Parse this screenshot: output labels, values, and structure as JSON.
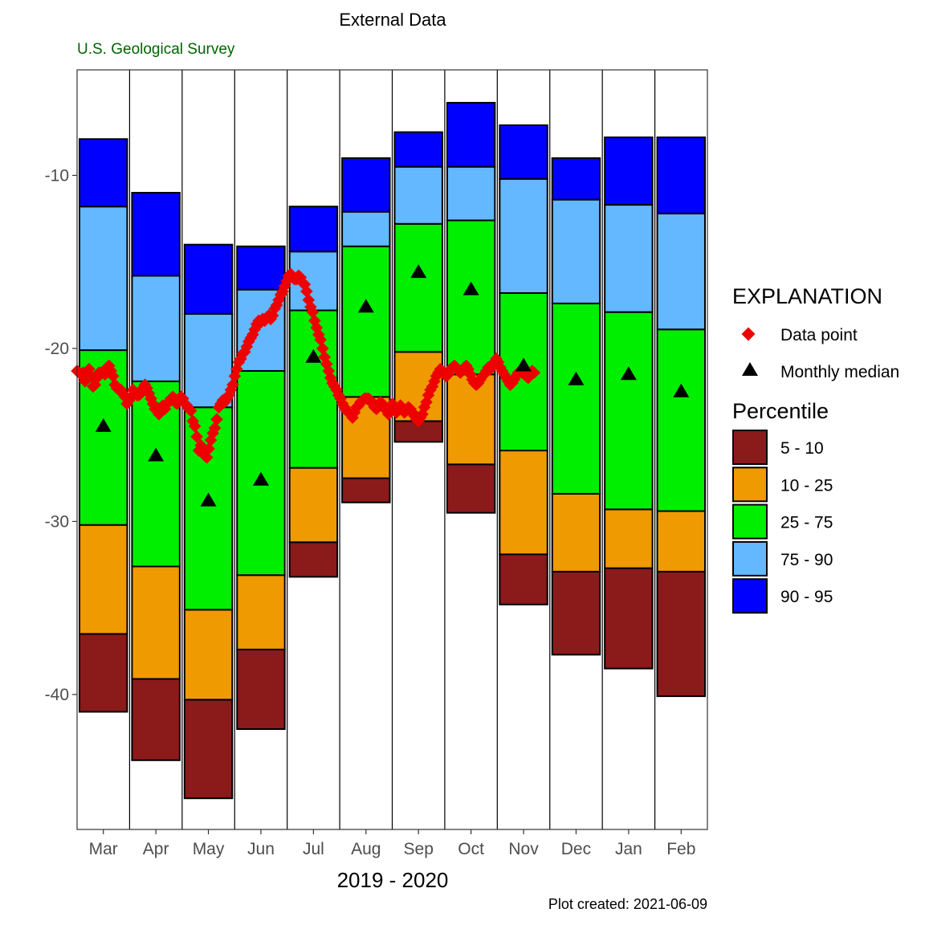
{
  "title": "External Data",
  "subtitle": "U.S. Geological Survey",
  "caption": "Plot created: 2021-06-09",
  "colors": {
    "p5_10": "#8B1A1A",
    "p10_25": "#EE9A00",
    "p25_75": "#00EE00",
    "p75_90": "#63B8FF",
    "p90_95": "#0000FF",
    "data_point": "#EE0000",
    "median": "#000000",
    "subtitle": "#006400"
  },
  "legend": {
    "explanation_title": "EXPLANATION",
    "data_point_label": "Data point",
    "median_label": "Monthly median",
    "percentile_title": "Percentile",
    "percentile_labels": [
      "5 - 10",
      "10 - 25",
      "25 - 75",
      "75 - 90",
      "90 - 95"
    ]
  },
  "chart_data": {
    "type": "bar",
    "xlabel": "2019 - 2020",
    "ylabel": "",
    "ylim": [
      -47.8,
      -3.9
    ],
    "yticks": [
      -10,
      -20,
      -30,
      -40
    ],
    "grid": false,
    "legend_position": "right",
    "categories": [
      "Mar",
      "Apr",
      "May",
      "Jun",
      "Jul",
      "Aug",
      "Sep",
      "Oct",
      "Nov",
      "Dec",
      "Jan",
      "Feb"
    ],
    "percentile_bands": [
      {
        "month": "Mar",
        "p5": -41.0,
        "p10": -36.5,
        "p25": -30.2,
        "p75": -20.1,
        "p90": -11.8,
        "p95": -7.9
      },
      {
        "month": "Apr",
        "p5": -43.8,
        "p10": -39.1,
        "p25": -32.6,
        "p75": -21.9,
        "p90": -15.8,
        "p95": -11.0
      },
      {
        "month": "May",
        "p5": -46.0,
        "p10": -40.3,
        "p25": -35.1,
        "p75": -23.4,
        "p90": -18.0,
        "p95": -14.0
      },
      {
        "month": "Jun",
        "p5": -42.0,
        "p10": -37.4,
        "p25": -33.1,
        "p75": -21.3,
        "p90": -16.6,
        "p95": -14.1
      },
      {
        "month": "Jul",
        "p5": -33.2,
        "p10": -31.2,
        "p25": -26.9,
        "p75": -17.8,
        "p90": -14.4,
        "p95": -11.8
      },
      {
        "month": "Aug",
        "p5": -28.9,
        "p10": -27.5,
        "p25": -22.8,
        "p75": -14.1,
        "p90": -12.1,
        "p95": -9.0
      },
      {
        "month": "Sep",
        "p5": -25.4,
        "p10": -24.2,
        "p25": -20.2,
        "p75": -12.8,
        "p90": -9.5,
        "p95": -7.5
      },
      {
        "month": "Oct",
        "p5": -29.5,
        "p10": -26.7,
        "p25": -21.5,
        "p75": -12.6,
        "p90": -9.5,
        "p95": -5.8
      },
      {
        "month": "Nov",
        "p5": -34.8,
        "p10": -31.9,
        "p25": -25.9,
        "p75": -16.8,
        "p90": -10.2,
        "p95": -7.1
      },
      {
        "month": "Dec",
        "p5": -37.7,
        "p10": -32.9,
        "p25": -28.4,
        "p75": -17.4,
        "p90": -11.4,
        "p95": -9.0
      },
      {
        "month": "Jan",
        "p5": -38.5,
        "p10": -32.7,
        "p25": -29.3,
        "p75": -17.9,
        "p90": -11.7,
        "p95": -7.8
      },
      {
        "month": "Feb",
        "p5": -40.1,
        "p10": -32.9,
        "p25": -29.4,
        "p75": -18.9,
        "p90": -12.2,
        "p95": -7.8
      }
    ],
    "monthly_median": [
      -24.5,
      -26.2,
      -28.8,
      -27.6,
      -20.5,
      -17.6,
      -15.6,
      -16.6,
      -21.0,
      -21.8,
      -21.5,
      -22.5
    ],
    "daily_data": {
      "start_position": 0.0,
      "step": 0.038,
      "values": [
        -21.3,
        -21.4,
        -21.5,
        -21.4,
        -21.9,
        -21.6,
        -21.2,
        -21.6,
        -22.2,
        -22.1,
        -21.7,
        -21.4,
        -21.4,
        -21.4,
        -21.5,
        -21.1,
        -21.0,
        -21.3,
        -21.6,
        -22.1,
        -22.3,
        -22.4,
        -22.4,
        -22.6,
        -22.8,
        -23.2,
        -23.0,
        -22.8,
        -22.4,
        -22.6,
        -22.7,
        -22.7,
        -22.6,
        -22.3,
        -22.1,
        -22.3,
        -22.6,
        -22.9,
        -23.2,
        -23.5,
        -23.6,
        -23.8,
        -23.4,
        -23.3,
        -23.5,
        -23.2,
        -23.1,
        -22.9,
        -22.8,
        -23.1,
        -23.2,
        -22.9,
        -22.8,
        -22.9,
        -23.2,
        -23.3,
        -23.5,
        -23.6,
        -24.2,
        -24.5,
        -25.1,
        -25.9,
        -25.6,
        -26.0,
        -26.2,
        -26.3,
        -25.8,
        -25.3,
        -24.9,
        -24.6,
        -24.1,
        -23.4,
        -23.2,
        -23.0,
        -23.1,
        -22.9,
        -22.7,
        -22.4,
        -22.1,
        -21.6,
        -21.2,
        -20.8,
        -20.6,
        -20.3,
        -20.2,
        -19.9,
        -19.6,
        -19.4,
        -19.2,
        -18.9,
        -18.6,
        -18.4,
        -18.5,
        -18.3,
        -18.4,
        -18.2,
        -18.1,
        -18.3,
        -18.1,
        -17.7,
        -17.5,
        -17.2,
        -16.9,
        -16.7,
        -16.4,
        -16.1,
        -15.8,
        -15.7,
        -15.9,
        -16.0,
        -16.0,
        -15.8,
        -15.9,
        -16.2,
        -16.3,
        -16.7,
        -17.2,
        -17.6,
        -17.9,
        -18.4,
        -18.8,
        -19.2,
        -19.5,
        -20.0,
        -20.5,
        -20.9,
        -21.3,
        -21.7,
        -22.0,
        -22.2,
        -22.4,
        -22.7,
        -22.9,
        -23.2,
        -23.4,
        -23.6,
        -23.7,
        -23.8,
        -24.0,
        -23.7,
        -23.4,
        -23.3,
        -23.1,
        -23.0,
        -22.9,
        -22.9,
        -22.9,
        -23.0,
        -23.2,
        -23.4,
        -23.5,
        -23.3,
        -23.1,
        -23.2,
        -23.4,
        -23.6,
        -23.8,
        -23.5,
        -23.2,
        -23.5,
        -23.7,
        -23.5,
        -23.3,
        -23.5,
        -23.7,
        -23.6,
        -23.4,
        -23.5,
        -23.7,
        -23.9,
        -24.1,
        -24.2,
        -24.0,
        -23.8,
        -23.4,
        -23.1,
        -22.7,
        -22.4,
        -22.2,
        -21.9,
        -21.6,
        -21.4,
        -21.2,
        -21.3,
        -21.5,
        -21.6,
        -21.5,
        -21.2,
        -21.1,
        -21.0,
        -21.1,
        -21.3,
        -21.4,
        -21.3,
        -21.1,
        -21.0,
        -21.2,
        -21.5,
        -21.8,
        -22.0,
        -22.1,
        -22.0,
        -21.8,
        -21.6,
        -21.5,
        -21.3,
        -21.1,
        -21.2,
        -21.0,
        -20.8,
        -20.6,
        -20.8,
        -21.1,
        -21.3,
        -21.5,
        -21.7,
        -21.9,
        -22.1,
        -22.0,
        -21.8,
        -21.6,
        -21.4,
        -21.3,
        -21.4,
        -21.5,
        -21.6,
        -21.7,
        -21.5,
        -21.3,
        -21.4
      ]
    }
  }
}
